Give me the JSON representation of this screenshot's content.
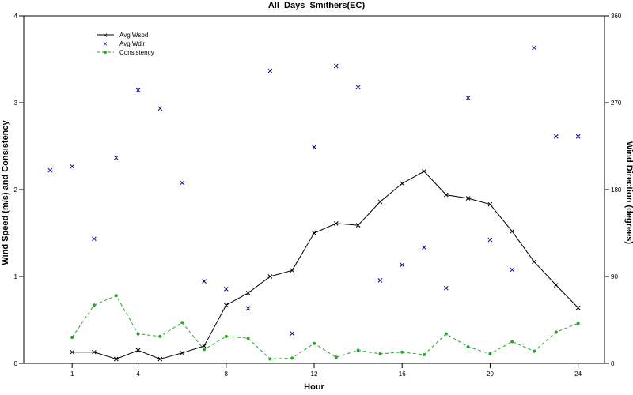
{
  "chart_data": {
    "type": "line",
    "title": "All_Days_Smithers(EC)",
    "xlabel": "Hour",
    "ylabel_left": "Wind Speed (m/s) and Consistency",
    "ylabel_right": "Wind Direction (degrees)",
    "xlim": [
      -1.2,
      25.2
    ],
    "ylim_left": [
      0,
      4
    ],
    "ylim_right": [
      0,
      360
    ],
    "x_ticks": [
      1,
      4,
      8,
      12,
      16,
      20,
      24
    ],
    "y_left_ticks": [
      0,
      1,
      2,
      3,
      4
    ],
    "y_right_ticks": [
      0,
      90,
      180,
      270,
      360
    ],
    "legend_position": "top-left",
    "series": [
      {
        "name": "Avg Wspd",
        "axis": "left",
        "style": "line-x",
        "color": "#000000",
        "x": [
          1,
          2,
          3,
          4,
          5,
          6,
          7,
          8,
          9,
          10,
          11,
          12,
          13,
          14,
          15,
          16,
          17,
          18,
          19,
          20,
          21,
          22,
          23,
          24
        ],
        "y": [
          0.13,
          0.13,
          0.05,
          0.15,
          0.05,
          0.12,
          0.2,
          0.67,
          0.81,
          1.0,
          1.07,
          1.5,
          1.61,
          1.59,
          1.86,
          2.07,
          2.21,
          1.94,
          1.9,
          1.83,
          1.52,
          1.17,
          0.9,
          0.64
        ]
      },
      {
        "name": "Avg Wdir",
        "axis": "right",
        "style": "marker-x",
        "color": "#00008b",
        "x": [
          0,
          1,
          2,
          3,
          4,
          5,
          6,
          7,
          8,
          9,
          10,
          11,
          12,
          13,
          14,
          15,
          16,
          17,
          18,
          19,
          20,
          21,
          22,
          23,
          24
        ],
        "y": [
          200,
          204,
          129,
          213,
          283,
          264,
          187,
          85,
          77,
          57,
          303,
          31,
          224,
          308,
          286,
          86,
          102,
          120,
          78,
          275,
          128,
          97,
          327,
          235,
          235
        ]
      },
      {
        "name": "Consistency",
        "axis": "left",
        "style": "dashed-dot",
        "color": "#22aa22",
        "x": [
          1,
          2,
          3,
          4,
          5,
          6,
          7,
          8,
          9,
          10,
          11,
          12,
          13,
          14,
          15,
          16,
          17,
          18,
          19,
          20,
          21,
          22,
          23,
          24
        ],
        "y": [
          0.3,
          0.67,
          0.78,
          0.34,
          0.31,
          0.47,
          0.16,
          0.31,
          0.29,
          0.05,
          0.06,
          0.23,
          0.07,
          0.15,
          0.11,
          0.13,
          0.1,
          0.34,
          0.19,
          0.11,
          0.25,
          0.14,
          0.36,
          0.46
        ]
      }
    ]
  }
}
